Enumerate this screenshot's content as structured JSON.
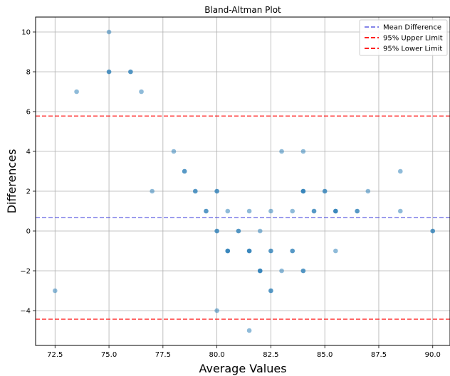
{
  "chart_data": {
    "type": "scatter",
    "title": "Bland-Altman Plot",
    "xlabel": "Average Values",
    "ylabel": "Differences",
    "xlim": [
      71.6,
      90.8
    ],
    "ylim": [
      -5.75,
      10.75
    ],
    "xticks": [
      72.5,
      75.0,
      77.5,
      80.0,
      82.5,
      85.0,
      87.5,
      90.0
    ],
    "xtick_labels": [
      "72.5",
      "75.0",
      "77.5",
      "80.0",
      "82.5",
      "85.0",
      "87.5",
      "90.0"
    ],
    "yticks": [
      -4,
      -2,
      0,
      2,
      4,
      6,
      8,
      10
    ],
    "ytick_labels": [
      "−4",
      "−2",
      "0",
      "2",
      "4",
      "6",
      "8",
      "10"
    ],
    "grid": true,
    "point_color": "#1f77b4",
    "point_alpha": 0.5,
    "points": [
      {
        "x": 72.5,
        "y": -3
      },
      {
        "x": 73.5,
        "y": 7
      },
      {
        "x": 75.0,
        "y": 10
      },
      {
        "x": 75.0,
        "y": 8
      },
      {
        "x": 75.0,
        "y": 8
      },
      {
        "x": 76.0,
        "y": 8
      },
      {
        "x": 76.0,
        "y": 8
      },
      {
        "x": 76.5,
        "y": 7
      },
      {
        "x": 77.0,
        "y": 2
      },
      {
        "x": 78.0,
        "y": 4
      },
      {
        "x": 78.5,
        "y": 3
      },
      {
        "x": 78.5,
        "y": 3
      },
      {
        "x": 79.0,
        "y": 2
      },
      {
        "x": 79.0,
        "y": 2
      },
      {
        "x": 79.5,
        "y": 1
      },
      {
        "x": 79.5,
        "y": 1
      },
      {
        "x": 80.0,
        "y": 2
      },
      {
        "x": 80.0,
        "y": 2
      },
      {
        "x": 80.0,
        "y": 0
      },
      {
        "x": 80.0,
        "y": 0
      },
      {
        "x": 80.0,
        "y": -4
      },
      {
        "x": 80.5,
        "y": 1
      },
      {
        "x": 80.5,
        "y": -1
      },
      {
        "x": 80.5,
        "y": -1
      },
      {
        "x": 80.5,
        "y": -1
      },
      {
        "x": 81.0,
        "y": 0
      },
      {
        "x": 81.0,
        "y": 0
      },
      {
        "x": 81.5,
        "y": 1
      },
      {
        "x": 81.5,
        "y": -1
      },
      {
        "x": 81.5,
        "y": -1
      },
      {
        "x": 81.5,
        "y": -1
      },
      {
        "x": 81.5,
        "y": -5
      },
      {
        "x": 82.0,
        "y": 0
      },
      {
        "x": 82.0,
        "y": -2
      },
      {
        "x": 82.0,
        "y": -2
      },
      {
        "x": 82.0,
        "y": -2
      },
      {
        "x": 82.5,
        "y": 1
      },
      {
        "x": 82.5,
        "y": -1
      },
      {
        "x": 82.5,
        "y": -1
      },
      {
        "x": 82.5,
        "y": -3
      },
      {
        "x": 82.5,
        "y": -3
      },
      {
        "x": 83.0,
        "y": 4
      },
      {
        "x": 83.0,
        "y": -2
      },
      {
        "x": 83.5,
        "y": 1
      },
      {
        "x": 83.5,
        "y": -1
      },
      {
        "x": 83.5,
        "y": -1
      },
      {
        "x": 84.0,
        "y": 4
      },
      {
        "x": 84.0,
        "y": 2
      },
      {
        "x": 84.0,
        "y": 2
      },
      {
        "x": 84.0,
        "y": 2
      },
      {
        "x": 84.0,
        "y": -2
      },
      {
        "x": 84.0,
        "y": -2
      },
      {
        "x": 84.5,
        "y": 1
      },
      {
        "x": 84.5,
        "y": 1
      },
      {
        "x": 85.0,
        "y": 2
      },
      {
        "x": 85.0,
        "y": 2
      },
      {
        "x": 85.5,
        "y": 1
      },
      {
        "x": 85.5,
        "y": 1
      },
      {
        "x": 85.5,
        "y": 1
      },
      {
        "x": 85.5,
        "y": -1
      },
      {
        "x": 86.5,
        "y": 1
      },
      {
        "x": 86.5,
        "y": 1
      },
      {
        "x": 87.0,
        "y": 2
      },
      {
        "x": 88.5,
        "y": 3
      },
      {
        "x": 88.5,
        "y": 1
      },
      {
        "x": 90.0,
        "y": 0
      },
      {
        "x": 90.0,
        "y": 0
      }
    ],
    "lines": [
      {
        "name": "Mean Difference",
        "y": 0.67,
        "color": "#3b3bdb",
        "dash": "6,3"
      },
      {
        "name": "95% Upper Limit",
        "y": 5.78,
        "color": "#ff0000",
        "dash": "6,3"
      },
      {
        "name": "95% Lower Limit",
        "y": -4.43,
        "color": "#ff0000",
        "dash": "6,3"
      }
    ],
    "legend": {
      "position": "top-right",
      "entries": [
        "Mean Difference",
        "95% Upper Limit",
        "95% Lower Limit"
      ]
    }
  }
}
